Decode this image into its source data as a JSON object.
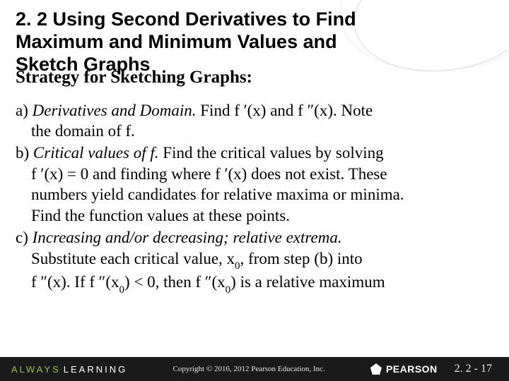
{
  "slide": {
    "title_line1": "2. 2 Using Second Derivatives to Find",
    "title_line2": "Maximum and Minimum Values and",
    "title_line3": "Sketch Graphs",
    "subtitle": "Strategy for Sketching Graphs:",
    "item_a_lead": "a) ",
    "item_a_em": "Derivatives and Domain.",
    "item_a_rest1": "  Find  f ′(x) and  f ″(x). Note",
    "item_a_rest2": "the domain of  f.",
    "item_b_lead": "b) ",
    "item_b_em": "Critical values of  f.",
    "item_b_rest1": "  Find the critical values by solving",
    "item_b_line2": " f ′(x) = 0 and finding where  f ′(x) does not exist. These",
    "item_b_line3": "numbers yield candidates for relative maxima or minima.",
    "item_b_line4": "Find the function values at these points.",
    "item_c_lead": "c) ",
    "item_c_em": "Increasing and/or decreasing; relative extrema.",
    "item_c_line2a": "Substitute each critical value, x",
    "item_c_line2b": ", from step (b) into",
    "item_c_line3a": " f ″(x). If  f ″(x",
    "item_c_line3b": ") < 0, then  f ″(x",
    "item_c_line3c": ") is a relative maximum",
    "sub0": "0"
  },
  "footer": {
    "always": "ALWAYS",
    "learning": "LEARNING",
    "copyright": "Copyright © 2016, 2012 Pearson Education, Inc.",
    "brand": "PEARSON",
    "pagenum": "2. 2 - 17"
  }
}
